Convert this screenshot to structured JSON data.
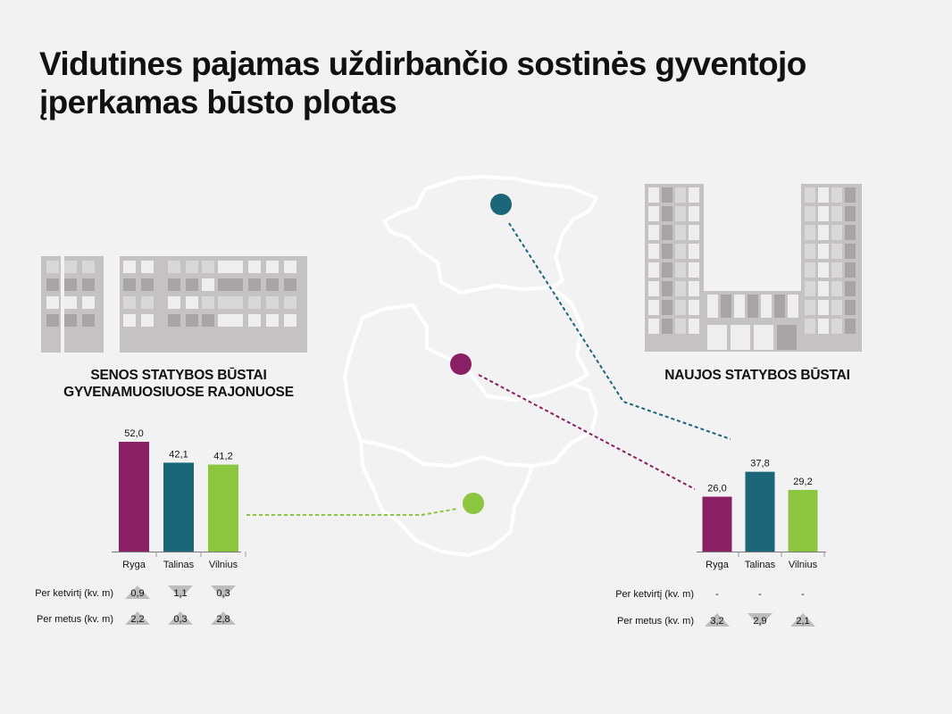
{
  "title": "Vidutines pajamas uždirbančio sostinės gyventojo įperkamas būsto plotas",
  "colors": {
    "ryga": "#8b1f63",
    "talinas": "#1b6678",
    "vilnius": "#8cc63f",
    "building": "#c4c2c2",
    "building_dark": "#a6a4a4",
    "map_outline": "#ffffff"
  },
  "left_panel": {
    "label_line1": "SENOS STATYBOS BŪSTAI",
    "label_line2": "GYVENAMUOSIUOSE RAJONUOSE",
    "row_quarter_label": "Per ketvirtį (kv. m)",
    "row_year_label": "Per metus (kv. m)",
    "quarter_changes": [
      "0,9",
      "1,1",
      "0,3"
    ],
    "quarter_directions": [
      "up",
      "down",
      "down"
    ],
    "year_changes": [
      "2,2",
      "0,3",
      "2,8"
    ],
    "year_directions": [
      "up",
      "up",
      "up"
    ]
  },
  "right_panel": {
    "label": "NAUJOS STATYBOS BŪSTAI",
    "row_quarter_label": "Per ketvirtį (kv. m)",
    "row_year_label": "Per metus (kv. m)",
    "quarter_changes": [
      "-",
      "-",
      "-"
    ],
    "year_changes": [
      "3,2",
      "2,9",
      "2,1"
    ],
    "year_directions": [
      "up",
      "down",
      "up"
    ]
  },
  "chart_data": [
    {
      "type": "bar",
      "categories": [
        "Ryga",
        "Talinas",
        "Vilnius"
      ],
      "values": [
        52.0,
        42.1,
        41.2
      ],
      "value_labels": [
        "52,0",
        "42,1",
        "41,2"
      ],
      "title": "SENOS STATYBOS BŪSTAI GYVENAMUOSIUOSE RAJONUOSE",
      "colors": [
        "#8b1f63",
        "#1b6678",
        "#8cc63f"
      ],
      "ylim": [
        0,
        52.0
      ],
      "grid": false
    },
    {
      "type": "bar",
      "categories": [
        "Ryga",
        "Talinas",
        "Vilnius"
      ],
      "values": [
        26.0,
        37.8,
        29.2
      ],
      "value_labels": [
        "26,0",
        "37,8",
        "29,2"
      ],
      "title": "NAUJOS STATYBOS BŪSTAI",
      "colors": [
        "#8b1f63",
        "#1b6678",
        "#8cc63f"
      ],
      "ylim": [
        0,
        52.0
      ],
      "grid": false
    }
  ]
}
